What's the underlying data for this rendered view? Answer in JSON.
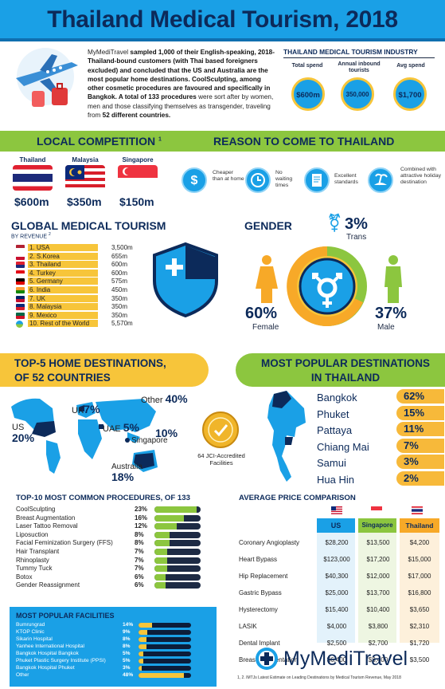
{
  "header": {
    "title": "Thailand Medical Tourism, 2018"
  },
  "intro": {
    "brand": "MyMediTravel",
    "p1": " sampled 1,000 of their English-speaking, 2018-Thailand-bound customers (with Thai based foreigners excluded) and concluded that the US and Australia are the most popular home destinations. CoolSculpting, among other cosmetic procedures are favoured and specifically in Bangkok. A total of ",
    "hl1": "133 procedures",
    "p2": " were sort after by women, men and those classifying themselves as transgender, traveling from ",
    "hl2": "52 different countries."
  },
  "industry": {
    "title": "THAILAND MEDICAL TOURISM INDUSTRY",
    "stats": [
      {
        "label": "Total spend",
        "value": "$600m"
      },
      {
        "label": "Annual inbound tourists",
        "value": "350,000"
      },
      {
        "label": "Avg spend",
        "value": "$1,700"
      }
    ]
  },
  "local": {
    "title": "LOCAL COMPETITION",
    "sup": "1",
    "countries": [
      {
        "name": "Thailand",
        "price": "$600m"
      },
      {
        "name": "Malaysia",
        "price": "$350m"
      },
      {
        "name": "Singapore",
        "price": "$150m"
      }
    ]
  },
  "reasons": {
    "title": "REASON TO COME TO THAILAND",
    "items": [
      {
        "text": "Cheaper than at home",
        "icon": "dollar-icon"
      },
      {
        "text": "No waiting times",
        "icon": "clock-icon"
      },
      {
        "text": "Excellent standards",
        "icon": "certificate-icon"
      },
      {
        "text": "Combined with attractive holiday destination",
        "icon": "beach-icon"
      }
    ]
  },
  "global": {
    "title": "GLOBAL MEDICAL TOURISM",
    "subtitle": "BY REVENUE",
    "sup": "2",
    "rows": [
      {
        "rank": "1.",
        "name": "USA",
        "value": "3,500m"
      },
      {
        "rank": "2.",
        "name": "S.Korea",
        "value": "655m"
      },
      {
        "rank": "3.",
        "name": "Thailand",
        "value": "600m"
      },
      {
        "rank": "4.",
        "name": "Turkey",
        "value": "600m"
      },
      {
        "rank": "5.",
        "name": "Germany",
        "value": "575m"
      },
      {
        "rank": "6.",
        "name": "India",
        "value": "450m"
      },
      {
        "rank": "7.",
        "name": "UK",
        "value": "350m"
      },
      {
        "rank": "8.",
        "name": "Malaysia",
        "value": "350m"
      },
      {
        "rank": "9.",
        "name": "Mexico",
        "value": "350m"
      },
      {
        "rank": "10.",
        "name": "Rest of the World",
        "value": "5,570m"
      }
    ]
  },
  "gender": {
    "title": "GENDER",
    "trans_pct": "3%",
    "trans_label": "Trans",
    "female_pct": "60%",
    "female_label": "Female",
    "male_pct": "37%",
    "male_label": "Male"
  },
  "home": {
    "title_l1": "TOP-5 HOME DESTINATIONS,",
    "title_l2": "OF 52 COUNTRIES",
    "labels": [
      {
        "name": "US",
        "pct": "20%"
      },
      {
        "name": "UK",
        "pct": "7%"
      },
      {
        "name": "UAE",
        "pct": "5%"
      },
      {
        "name": "Singapore",
        "pct": "10%"
      },
      {
        "name": "Australia",
        "pct": "18%"
      },
      {
        "name": "Other",
        "pct": "40%"
      }
    ],
    "jci": "64 JCI-Accredited Facilities"
  },
  "popular": {
    "title_l1": "MOST POPULAR DESTINATIONS",
    "title_l2": "IN THAILAND",
    "rows": [
      {
        "name": "Bangkok",
        "pct": "62%"
      },
      {
        "name": "Phuket",
        "pct": "15%"
      },
      {
        "name": "Pattaya",
        "pct": "11%"
      },
      {
        "name": "Chiang Mai",
        "pct": "7%"
      },
      {
        "name": "Samui",
        "pct": "3%"
      },
      {
        "name": "Hua Hin",
        "pct": "2%"
      }
    ]
  },
  "procedures": {
    "title": "TOP-10 MOST COMMON PROCEDURES, OF 133",
    "rows": [
      {
        "name": "CoolSculpting",
        "pct": "23%",
        "frac": 0.23
      },
      {
        "name": "Breast Augmentation",
        "pct": "16%",
        "frac": 0.16
      },
      {
        "name": "Laser Tattoo Removal",
        "pct": "12%",
        "frac": 0.12
      },
      {
        "name": "Liposuction",
        "pct": "8%",
        "frac": 0.08
      },
      {
        "name": "Facial Feminization Surgery (FFS)",
        "pct": "8%",
        "frac": 0.08
      },
      {
        "name": "Hair Transplant",
        "pct": "7%",
        "frac": 0.07
      },
      {
        "name": "Rhinoplasty",
        "pct": "7%",
        "frac": 0.07
      },
      {
        "name": "Tummy Tuck",
        "pct": "7%",
        "frac": 0.07
      },
      {
        "name": "Botox",
        "pct": "6%",
        "frac": 0.06
      },
      {
        "name": "Gender Reassignment",
        "pct": "6%",
        "frac": 0.06
      }
    ]
  },
  "facilities": {
    "title": "MOST POPULAR FACILITIES",
    "rows": [
      {
        "name": "Bumrungrad",
        "pct": "14%",
        "frac": 0.14
      },
      {
        "name": "KTOP Clinic",
        "pct": "9%",
        "frac": 0.09
      },
      {
        "name": "Sikarin Hospital",
        "pct": "8%",
        "frac": 0.08
      },
      {
        "name": "Yanhee International Hospital",
        "pct": "8%",
        "frac": 0.08
      },
      {
        "name": "Bangkok Hospital Bangkok",
        "pct": "5%",
        "frac": 0.05
      },
      {
        "name": "Phuket Plastic Surgery Institute (PPSI)",
        "pct": "5%",
        "frac": 0.05
      },
      {
        "name": "Bangkok Hospital Phuket",
        "pct": "3%",
        "frac": 0.03
      },
      {
        "name": "Other",
        "pct": "48%",
        "frac": 0.48
      }
    ]
  },
  "prices": {
    "title": "AVERAGE PRICE COMPARISON",
    "cols": [
      "US",
      "Singapore",
      "Thailand"
    ],
    "rows": [
      {
        "name": "Coronary Angioplasty",
        "us": "$28,200",
        "sg": "$13,500",
        "th": "$4,200"
      },
      {
        "name": "Heart Bypass",
        "us": "$123,000",
        "sg": "$17,200",
        "th": "$15,000"
      },
      {
        "name": "Hip Replacement",
        "us": "$40,300",
        "sg": "$12,000",
        "th": "$17,000"
      },
      {
        "name": "Gastric Bypass",
        "us": "$25,000",
        "sg": "$13,700",
        "th": "$16,800"
      },
      {
        "name": "Hysterectomy",
        "us": "$15,400",
        "sg": "$10,400",
        "th": "$3,650"
      },
      {
        "name": "LASIK",
        "us": "$4,000",
        "sg": "$3,800",
        "th": "$2,310"
      },
      {
        "name": "Dental Implant",
        "us": "$2,500",
        "sg": "$2,700",
        "th": "$1,720"
      },
      {
        "name": "Breast Augmentation",
        "us": "$6,400",
        "sg": "$8,400",
        "th": "$3,500"
      }
    ]
  },
  "footer": {
    "logo": "MyMediTravel",
    "note": "1, 2. IMTJs Latest Estimate on Leading Destinations by Medical Tourism Revenue, May 2018"
  },
  "colors": {
    "blue": "#1aa0e6",
    "navy": "#0c2a5a",
    "green": "#8cc63f",
    "yellow": "#f7c53a",
    "orange": "#f7a928"
  }
}
